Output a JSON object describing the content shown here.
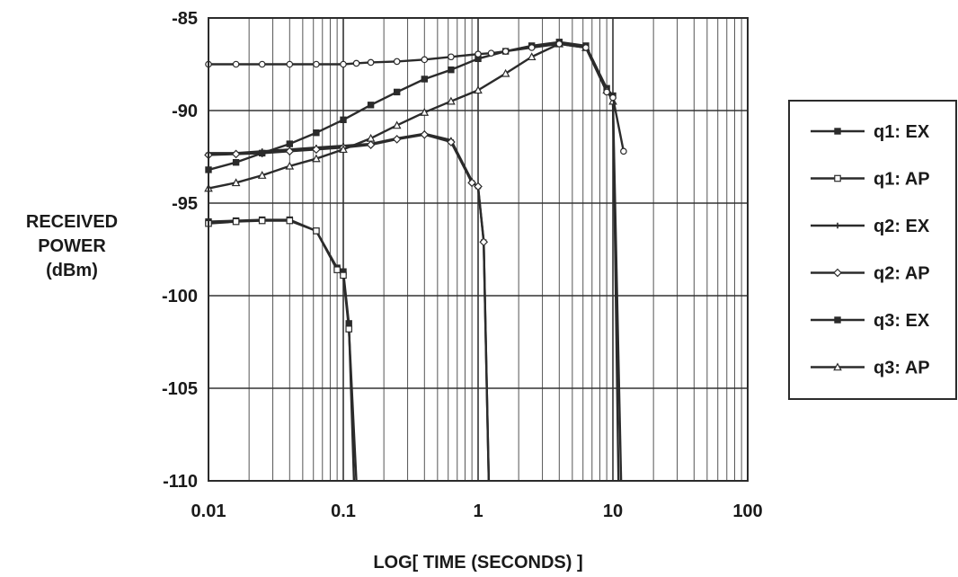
{
  "chart_data": {
    "type": "line",
    "title": "",
    "xlabel": "LOG[ TIME (SECONDS) ]",
    "ylabel_lines": [
      "RECEIVED",
      "POWER",
      "(dBm)"
    ],
    "xscale": "log",
    "xlim": [
      0.01,
      100
    ],
    "ylim": [
      -110,
      -85
    ],
    "xticks": [
      {
        "value": 0.01,
        "label": "0.01"
      },
      {
        "value": 0.1,
        "label": "0.1"
      },
      {
        "value": 1,
        "label": "1"
      },
      {
        "value": 10,
        "label": "10"
      },
      {
        "value": 100,
        "label": "100"
      }
    ],
    "yticks": [
      {
        "value": -85,
        "label": "-85"
      },
      {
        "value": -90,
        "label": "-90"
      },
      {
        "value": -95,
        "label": "-95"
      },
      {
        "value": -100,
        "label": "-100"
      },
      {
        "value": -105,
        "label": "-105"
      },
      {
        "value": -110,
        "label": "-110"
      }
    ],
    "grid": true,
    "legend": "right",
    "line_color": "#2b2b2b",
    "series": [
      {
        "name": "q1: EX",
        "marker": "filled-square",
        "x": [
          0.01,
          0.016,
          0.025,
          0.04,
          0.063,
          0.09,
          0.1,
          0.11,
          0.12
        ],
        "y": [
          -96.0,
          -95.95,
          -95.9,
          -95.9,
          -96.5,
          -98.5,
          -98.7,
          -101.5,
          -110
        ]
      },
      {
        "name": "q1: AP",
        "marker": "open-square",
        "x": [
          0.01,
          0.016,
          0.025,
          0.04,
          0.063,
          0.09,
          0.1,
          0.11,
          0.125
        ],
        "y": [
          -96.1,
          -96.0,
          -95.95,
          -95.95,
          -96.5,
          -98.6,
          -98.9,
          -101.8,
          -110
        ]
      },
      {
        "name": "q2: EX",
        "marker": "plus",
        "x": [
          0.01,
          0.016,
          0.025,
          0.04,
          0.063,
          0.1,
          0.16,
          0.25,
          0.4,
          0.63,
          0.9,
          1.0,
          1.1,
          1.2
        ],
        "y": [
          -92.3,
          -92.3,
          -92.2,
          -92.1,
          -92.0,
          -91.9,
          -91.8,
          -91.5,
          -91.25,
          -91.6,
          -93.8,
          -94.2,
          -97.0,
          -110
        ]
      },
      {
        "name": "q2: AP",
        "marker": "open-diamond",
        "x": [
          0.01,
          0.016,
          0.025,
          0.04,
          0.063,
          0.1,
          0.16,
          0.25,
          0.4,
          0.63,
          0.9,
          1.0,
          1.1,
          1.2
        ],
        "y": [
          -92.4,
          -92.35,
          -92.3,
          -92.2,
          -92.1,
          -92.0,
          -91.85,
          -91.55,
          -91.3,
          -91.7,
          -93.9,
          -94.1,
          -97.1,
          -110
        ]
      },
      {
        "name": "q3: EX",
        "marker": "filled-square",
        "x": [
          0.01,
          0.016,
          0.025,
          0.04,
          0.063,
          0.1,
          0.16,
          0.25,
          0.4,
          0.63,
          1.0,
          1.6,
          2.5,
          4.0,
          6.3,
          9.0,
          10.0,
          11.0
        ],
        "y": [
          -93.2,
          -92.8,
          -92.3,
          -91.8,
          -91.2,
          -90.5,
          -89.7,
          -89.0,
          -88.3,
          -87.8,
          -87.2,
          -86.8,
          -86.5,
          -86.3,
          -86.5,
          -88.8,
          -89.2,
          -110
        ]
      },
      {
        "name": "q3: AP",
        "marker": "open-triangle",
        "x": [
          0.01,
          0.016,
          0.025,
          0.04,
          0.063,
          0.1,
          0.16,
          0.25,
          0.4,
          0.63,
          1.0,
          1.6,
          2.5,
          4.0,
          6.3,
          9.0,
          10.0,
          11.5
        ],
        "y": [
          -94.2,
          -93.9,
          -93.5,
          -93.0,
          -92.6,
          -92.1,
          -91.5,
          -90.8,
          -90.1,
          -89.5,
          -88.9,
          -88.0,
          -87.1,
          -86.4,
          -86.6,
          -88.9,
          -89.5,
          -110
        ]
      },
      {
        "name": "",
        "marker": "open-circle",
        "x": [
          0.01,
          0.016,
          0.025,
          0.04,
          0.063,
          0.1,
          0.125,
          0.16,
          0.25,
          0.4,
          0.63,
          1.0,
          1.25,
          1.6,
          2.5,
          4.0,
          6.3,
          9.0,
          10.0,
          12.0
        ],
        "y": [
          -87.5,
          -87.5,
          -87.5,
          -87.5,
          -87.5,
          -87.5,
          -87.45,
          -87.4,
          -87.35,
          -87.25,
          -87.1,
          -86.95,
          -86.9,
          -86.8,
          -86.6,
          -86.4,
          -86.6,
          -89.0,
          -89.3,
          -92.2
        ]
      }
    ]
  }
}
